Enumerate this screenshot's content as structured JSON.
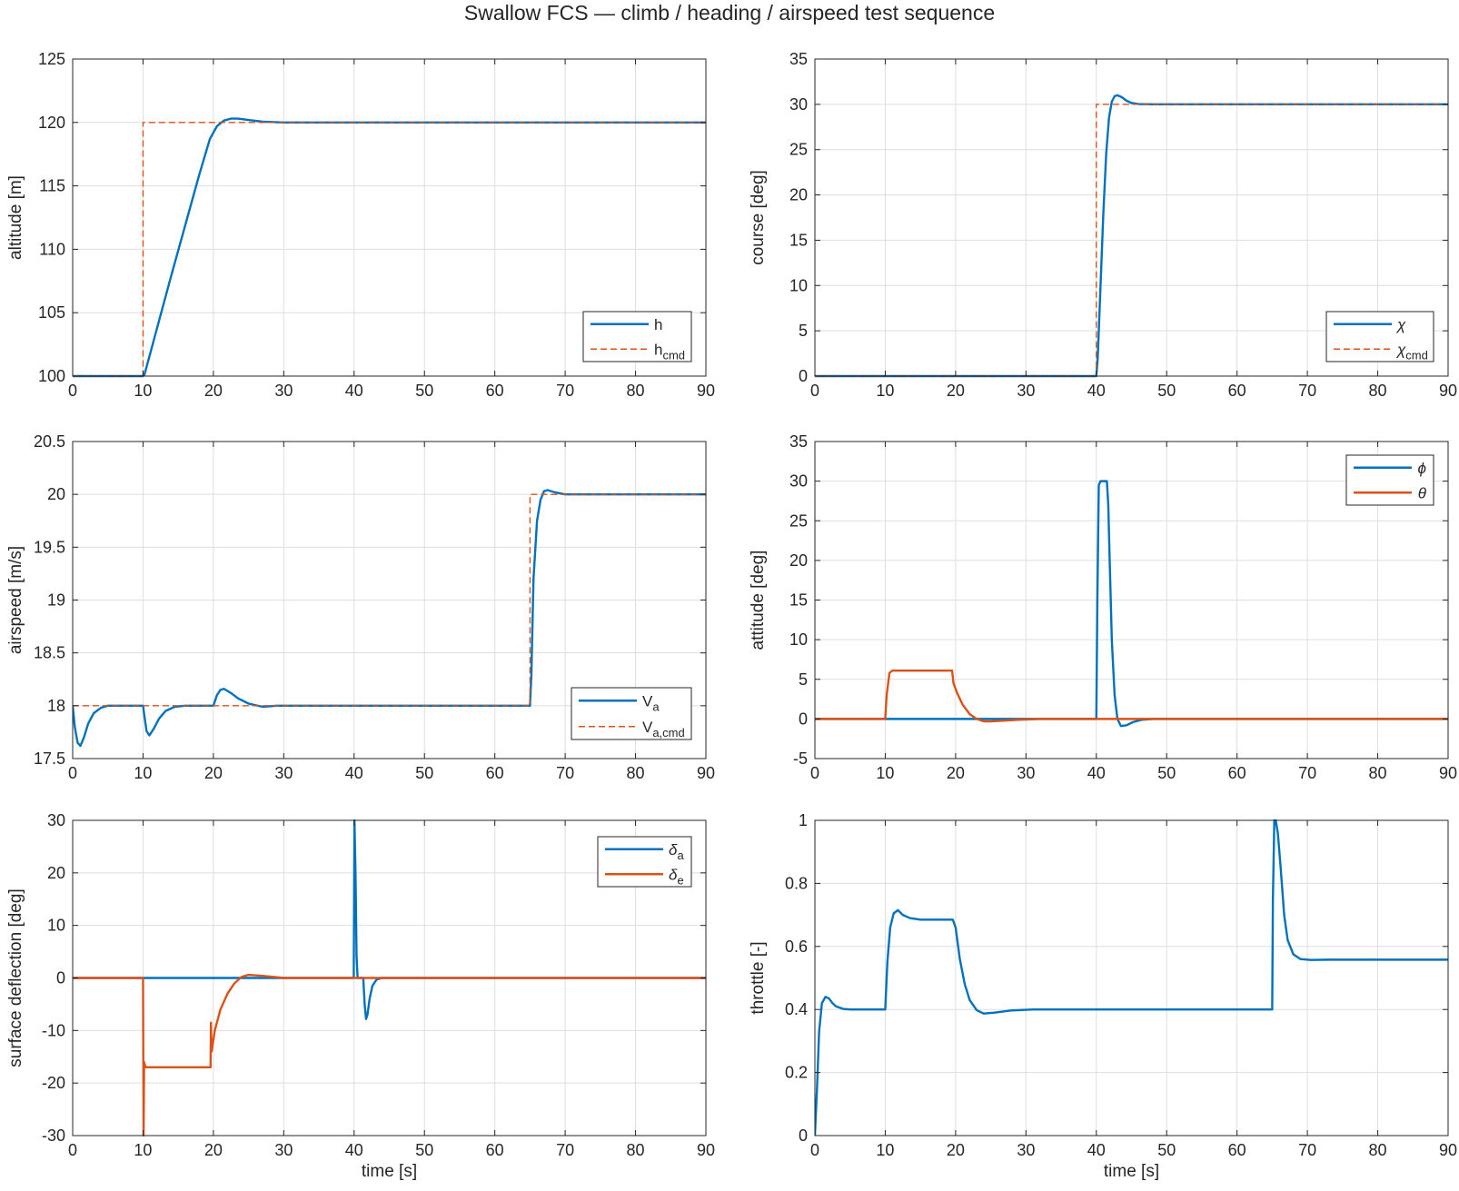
{
  "figure": {
    "title": "Swallow FCS — climb / heading / airspeed test sequence",
    "colors": {
      "blue": "#0072BD",
      "orange": "#D95319",
      "grid": "#dedede",
      "axis": "#262626"
    }
  },
  "chart_data": [
    {
      "id": "altitude",
      "type": "line",
      "xlabel": "",
      "ylabel": "altitude [m]",
      "xlim": [
        0,
        90
      ],
      "ylim": [
        100,
        125
      ],
      "xticks": [
        0,
        10,
        20,
        30,
        40,
        50,
        60,
        70,
        80,
        90
      ],
      "yticks": [
        100,
        105,
        110,
        115,
        120,
        125
      ],
      "grid": true,
      "legend_position": "bottom-right",
      "series": [
        {
          "name": "h",
          "color": "#0072BD",
          "dash": "solid",
          "width": 2.4,
          "x": [
            0,
            10,
            10.2,
            12,
            14,
            16,
            18,
            19.5,
            20.5,
            21.5,
            22.5,
            23.5,
            25,
            27,
            30,
            35,
            90
          ],
          "y": [
            100,
            100,
            100.1,
            103.8,
            107.9,
            111.9,
            115.9,
            118.7,
            119.7,
            120.15,
            120.3,
            120.3,
            120.2,
            120.06,
            120.0,
            120.0,
            120.0
          ]
        },
        {
          "name": "h",
          "name_sub": "cmd",
          "color": "#D95319",
          "dash": "dashed",
          "width": 1.4,
          "x": [
            0,
            10,
            10,
            90
          ],
          "y": [
            100,
            100,
            120,
            120
          ]
        }
      ]
    },
    {
      "id": "course",
      "type": "line",
      "xlabel": "",
      "ylabel": "course [deg]",
      "xlim": [
        0,
        90
      ],
      "ylim": [
        0,
        35
      ],
      "xticks": [
        0,
        10,
        20,
        30,
        40,
        50,
        60,
        70,
        80,
        90
      ],
      "yticks": [
        0,
        5,
        10,
        15,
        20,
        25,
        30,
        35
      ],
      "grid": true,
      "legend_position": "bottom-right",
      "series": [
        {
          "name": "χ",
          "color": "#0072BD",
          "dash": "solid",
          "width": 2.4,
          "x": [
            0,
            40,
            40.2,
            40.6,
            41,
            41.4,
            41.8,
            42.2,
            42.6,
            43,
            43.6,
            44.3,
            45,
            46,
            48,
            90
          ],
          "y": [
            0,
            0,
            2,
            10,
            18,
            24.5,
            28.5,
            30.3,
            30.9,
            31.0,
            30.8,
            30.4,
            30.15,
            30.03,
            30.0,
            30.0
          ]
        },
        {
          "name": "χ",
          "name_sub": "cmd",
          "color": "#D95319",
          "dash": "dashed",
          "width": 1.4,
          "x": [
            0,
            40,
            40,
            90
          ],
          "y": [
            0,
            0,
            30,
            30
          ]
        }
      ]
    },
    {
      "id": "airspeed",
      "type": "line",
      "xlabel": "",
      "ylabel": "airspeed [m/s]",
      "xlim": [
        0,
        90
      ],
      "ylim": [
        17.5,
        20.5
      ],
      "xticks": [
        0,
        10,
        20,
        30,
        40,
        50,
        60,
        70,
        80,
        90
      ],
      "yticks": [
        17.5,
        18,
        18.5,
        19,
        19.5,
        20,
        20.5
      ],
      "grid": true,
      "legend_position": "bottom-right",
      "series": [
        {
          "name": "V",
          "name_sub": "a",
          "color": "#0072BD",
          "dash": "solid",
          "width": 2.4,
          "x": [
            0,
            0.3,
            0.7,
            1.1,
            1.6,
            2.2,
            3,
            4,
            5,
            7,
            10,
            10.2,
            10.5,
            10.9,
            11.5,
            12.3,
            13.2,
            14.5,
            16,
            20,
            20.5,
            21,
            21.5,
            22.5,
            23.5,
            25,
            27,
            29,
            35,
            65,
            65.2,
            65.5,
            66,
            66.5,
            67,
            67.5,
            68.5,
            70,
            72,
            90
          ],
          "y": [
            18.0,
            17.8,
            17.65,
            17.62,
            17.7,
            17.83,
            17.93,
            17.98,
            18.0,
            18.0,
            18.0,
            17.9,
            17.76,
            17.72,
            17.78,
            17.88,
            17.95,
            17.99,
            18.0,
            18.0,
            18.1,
            18.15,
            18.16,
            18.12,
            18.07,
            18.02,
            17.99,
            18.0,
            18.0,
            18.0,
            18.3,
            19.2,
            19.75,
            19.95,
            20.03,
            20.04,
            20.02,
            20.0,
            20.0,
            20.0
          ]
        },
        {
          "name": "V",
          "name_sub": "a,cmd",
          "color": "#D95319",
          "dash": "dashed",
          "width": 1.4,
          "x": [
            0,
            65,
            65,
            90
          ],
          "y": [
            18,
            18,
            20,
            20
          ]
        }
      ]
    },
    {
      "id": "attitude",
      "type": "line",
      "xlabel": "",
      "ylabel": "attitude [deg]",
      "xlim": [
        0,
        90
      ],
      "ylim": [
        -5,
        35
      ],
      "xticks": [
        0,
        10,
        20,
        30,
        40,
        50,
        60,
        70,
        80,
        90
      ],
      "yticks": [
        -5,
        0,
        5,
        10,
        15,
        20,
        25,
        30,
        35
      ],
      "grid": true,
      "legend_position": "top-right",
      "series": [
        {
          "name": "ϕ",
          "color": "#0072BD",
          "dash": "solid",
          "width": 2.4,
          "x": [
            0,
            40,
            40.15,
            40.35,
            40.6,
            41.5,
            41.7,
            41.9,
            42.2,
            42.6,
            43,
            43.5,
            44.3,
            45.2,
            46.5,
            48,
            90
          ],
          "y": [
            0,
            0,
            15,
            29.5,
            30,
            30,
            27,
            20,
            10,
            3,
            0,
            -0.9,
            -0.8,
            -0.4,
            -0.1,
            0,
            0
          ]
        },
        {
          "name": "θ",
          "color": "#D95319",
          "dash": "solid",
          "width": 2.4,
          "x": [
            0,
            10,
            10.2,
            10.6,
            11,
            19.5,
            19.7,
            20.2,
            21,
            22,
            23,
            24,
            25,
            27,
            29,
            32,
            90
          ],
          "y": [
            0,
            0,
            3,
            5.8,
            6.1,
            6.1,
            4.5,
            3.3,
            1.8,
            0.6,
            0,
            -0.3,
            -0.3,
            -0.2,
            -0.1,
            0,
            0
          ]
        }
      ]
    },
    {
      "id": "surface_deflection",
      "type": "line",
      "xlabel": "time [s]",
      "ylabel": "surface deflection [deg]",
      "xlim": [
        0,
        90
      ],
      "ylim": [
        -30,
        30
      ],
      "xticks": [
        0,
        10,
        20,
        30,
        40,
        50,
        60,
        70,
        80,
        90
      ],
      "yticks": [
        -30,
        -20,
        -10,
        0,
        10,
        20,
        30
      ],
      "grid": true,
      "legend_position": "top-right",
      "series": [
        {
          "name": "δ",
          "name_sub": "a",
          "color": "#0072BD",
          "dash": "solid",
          "width": 2.4,
          "x": [
            0,
            39.95,
            40.05,
            40.2,
            40.35,
            40.5,
            41.3,
            41.5,
            41.7,
            41.9,
            42.2,
            42.6,
            43.2,
            44,
            90
          ],
          "y": [
            0,
            0,
            30,
            20,
            4,
            0,
            0,
            -5,
            -7.8,
            -7,
            -4,
            -1.5,
            -0.3,
            0,
            0
          ]
        },
        {
          "name": "δ",
          "name_sub": "e",
          "color": "#D95319",
          "dash": "solid",
          "width": 2.4,
          "x": [
            0,
            10,
            10.08,
            10.15,
            10.25,
            10.4,
            11,
            19.6,
            19.65,
            19.75,
            20.2,
            21,
            22,
            23,
            24,
            25,
            27,
            30,
            90
          ],
          "y": [
            0,
            0,
            -30,
            -16,
            -16.5,
            -17,
            -17,
            -17,
            -8.5,
            -14,
            -10,
            -6,
            -3,
            -1,
            0.2,
            0.6,
            0.4,
            0,
            0
          ]
        }
      ]
    },
    {
      "id": "throttle",
      "type": "line",
      "xlabel": "time [s]",
      "ylabel": "throttle [-]",
      "xlim": [
        0,
        90
      ],
      "ylim": [
        0,
        1
      ],
      "xticks": [
        0,
        10,
        20,
        30,
        40,
        50,
        60,
        70,
        80,
        90
      ],
      "yticks": [
        0,
        0.2,
        0.4,
        0.6,
        0.8,
        1
      ],
      "grid": true,
      "legend_position": "none",
      "series": [
        {
          "name": "throttle",
          "color": "#0072BD",
          "dash": "solid",
          "width": 2.4,
          "x": [
            0,
            0.3,
            0.6,
            1,
            1.5,
            2,
            2.5,
            3,
            4,
            5,
            7,
            10,
            10.3,
            10.7,
            11.2,
            11.8,
            12.5,
            13.5,
            15,
            17,
            19.6,
            20,
            20.6,
            21.3,
            22,
            23,
            24,
            25.5,
            28,
            31,
            35,
            40,
            65,
            65.1,
            65.3,
            65.5,
            65.8,
            66.2,
            66.7,
            67.2,
            68,
            69,
            70.5,
            73,
            90
          ],
          "y": [
            0,
            0.15,
            0.33,
            0.42,
            0.44,
            0.435,
            0.42,
            0.41,
            0.402,
            0.4,
            0.4,
            0.4,
            0.55,
            0.66,
            0.705,
            0.715,
            0.7,
            0.69,
            0.685,
            0.685,
            0.685,
            0.66,
            0.56,
            0.48,
            0.43,
            0.398,
            0.387,
            0.39,
            0.397,
            0.4,
            0.4,
            0.4,
            0.4,
            0.75,
            1.0,
            1.0,
            0.96,
            0.85,
            0.7,
            0.62,
            0.575,
            0.56,
            0.557,
            0.558,
            0.558
          ]
        }
      ]
    }
  ]
}
